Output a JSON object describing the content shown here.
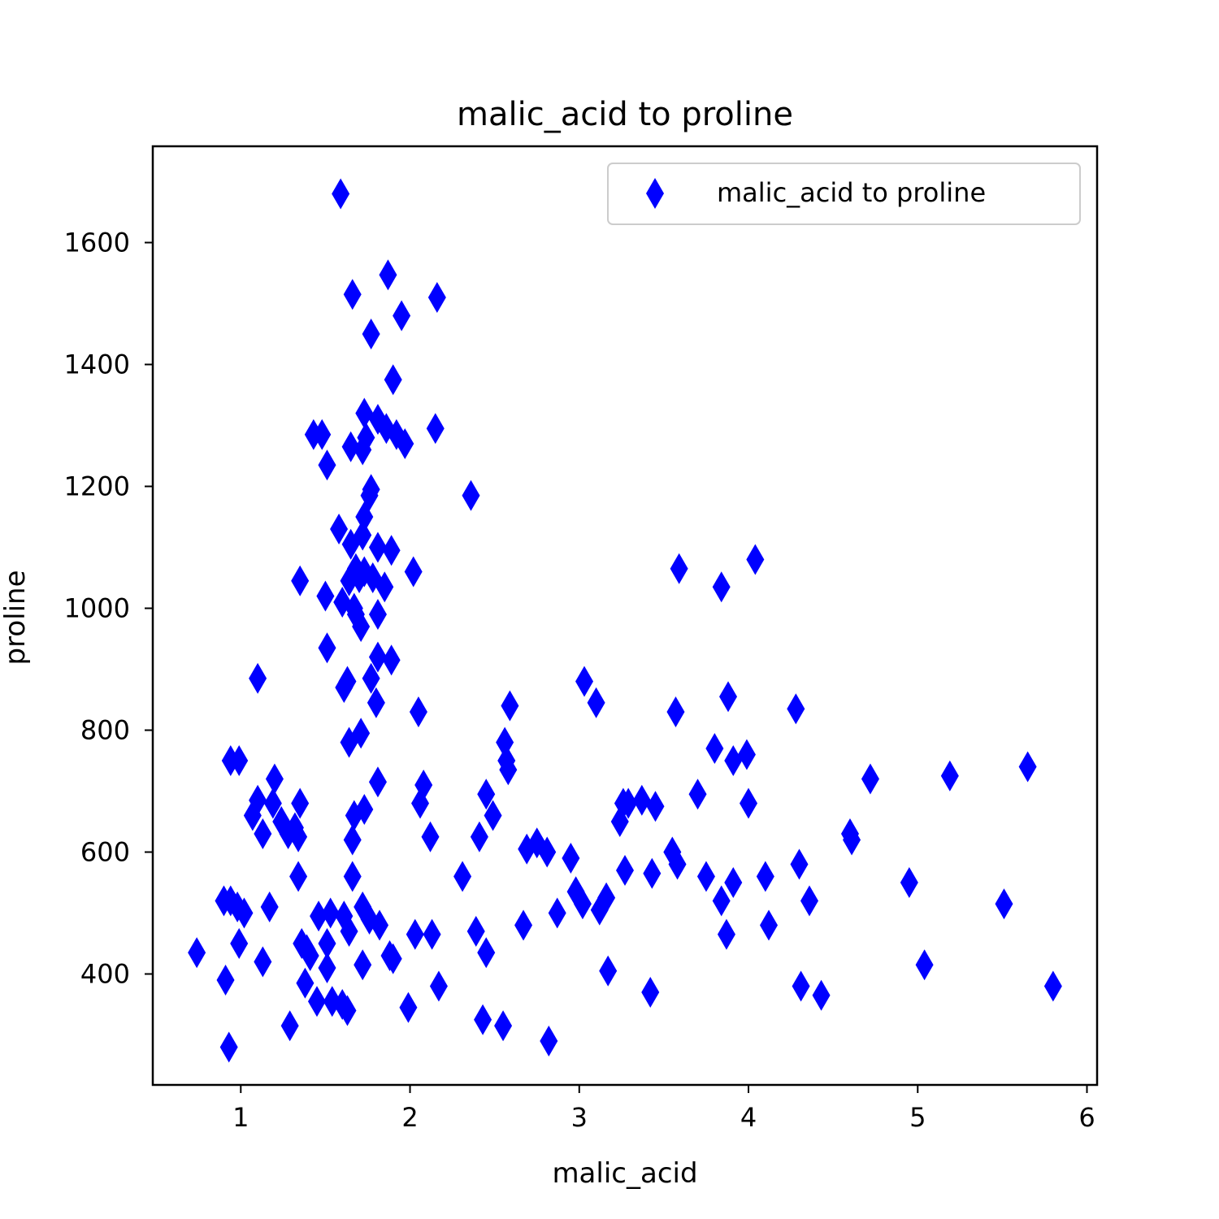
{
  "chart_data": {
    "type": "scatter",
    "title": "malic_acid to proline",
    "xlabel": "malic_acid",
    "ylabel": "proline",
    "xlim": [
      0.48,
      6.06
    ],
    "ylim": [
      218,
      1758
    ],
    "xticks": [
      1,
      2,
      3,
      4,
      5,
      6
    ],
    "yticks": [
      400,
      600,
      800,
      1000,
      1200,
      1400,
      1600
    ],
    "xtick_labels": [
      "1",
      "2",
      "3",
      "4",
      "5",
      "6"
    ],
    "ytick_labels": [
      "400",
      "600",
      "800",
      "1000",
      "1200",
      "1400",
      "1600"
    ],
    "grid": false,
    "legend": {
      "position": "top-right"
    },
    "marker": "thin_diamond",
    "color": "#0000ff",
    "series": [
      {
        "name": "malic_acid to proline",
        "points": [
          [
            1.59,
            1680
          ],
          [
            1.87,
            1547
          ],
          [
            1.66,
            1515
          ],
          [
            2.16,
            1510
          ],
          [
            1.95,
            1480
          ],
          [
            1.77,
            1450
          ],
          [
            1.9,
            1375
          ],
          [
            1.73,
            1320
          ],
          [
            1.81,
            1310
          ],
          [
            1.86,
            1295
          ],
          [
            1.92,
            1285
          ],
          [
            1.97,
            1270
          ],
          [
            2.15,
            1295
          ],
          [
            1.43,
            1285
          ],
          [
            1.48,
            1285
          ],
          [
            1.65,
            1265
          ],
          [
            1.72,
            1260
          ],
          [
            1.74,
            1280
          ],
          [
            1.51,
            1235
          ],
          [
            2.36,
            1185
          ],
          [
            1.77,
            1195
          ],
          [
            1.76,
            1185
          ],
          [
            1.73,
            1150
          ],
          [
            1.58,
            1130
          ],
          [
            1.72,
            1120
          ],
          [
            1.65,
            1105
          ],
          [
            1.81,
            1100
          ],
          [
            1.89,
            1095
          ],
          [
            1.68,
            1065
          ],
          [
            1.73,
            1060
          ],
          [
            1.7,
            1050
          ],
          [
            1.64,
            1045
          ],
          [
            1.78,
            1050
          ],
          [
            1.85,
            1035
          ],
          [
            2.02,
            1060
          ],
          [
            1.35,
            1045
          ],
          [
            1.5,
            1020
          ],
          [
            1.6,
            1010
          ],
          [
            1.67,
            1000
          ],
          [
            1.68,
            990
          ],
          [
            1.71,
            970
          ],
          [
            1.81,
            990
          ],
          [
            1.51,
            935
          ],
          [
            1.81,
            920
          ],
          [
            1.89,
            915
          ],
          [
            1.77,
            885
          ],
          [
            1.63,
            880
          ],
          [
            1.61,
            870
          ],
          [
            1.1,
            885
          ],
          [
            1.8,
            845
          ],
          [
            2.05,
            830
          ],
          [
            1.64,
            780
          ],
          [
            1.71,
            795
          ],
          [
            1.81,
            715
          ],
          [
            0.94,
            750
          ],
          [
            0.99,
            750
          ],
          [
            1.2,
            720
          ],
          [
            1.1,
            685
          ],
          [
            1.07,
            660
          ],
          [
            1.13,
            630
          ],
          [
            1.19,
            680
          ],
          [
            1.24,
            650
          ],
          [
            1.28,
            630
          ],
          [
            1.32,
            640
          ],
          [
            1.34,
            625
          ],
          [
            1.35,
            680
          ],
          [
            1.67,
            660
          ],
          [
            1.73,
            670
          ],
          [
            1.66,
            620
          ],
          [
            2.08,
            710
          ],
          [
            2.06,
            680
          ],
          [
            2.12,
            625
          ],
          [
            1.34,
            560
          ],
          [
            1.66,
            560
          ],
          [
            0.9,
            520
          ],
          [
            0.94,
            520
          ],
          [
            0.98,
            510
          ],
          [
            1.02,
            500
          ],
          [
            1.17,
            510
          ],
          [
            1.46,
            495
          ],
          [
            1.53,
            500
          ],
          [
            1.61,
            495
          ],
          [
            1.64,
            470
          ],
          [
            1.72,
            510
          ],
          [
            1.76,
            490
          ],
          [
            1.82,
            480
          ],
          [
            0.74,
            435
          ],
          [
            0.99,
            450
          ],
          [
            1.13,
            420
          ],
          [
            0.91,
            390
          ],
          [
            0.93,
            280
          ],
          [
            1.36,
            450
          ],
          [
            1.39,
            440
          ],
          [
            1.41,
            430
          ],
          [
            1.38,
            385
          ],
          [
            1.45,
            355
          ],
          [
            1.51,
            450
          ],
          [
            1.51,
            410
          ],
          [
            1.54,
            355
          ],
          [
            1.6,
            350
          ],
          [
            1.63,
            340
          ],
          [
            1.29,
            315
          ],
          [
            1.72,
            415
          ],
          [
            1.88,
            430
          ],
          [
            1.9,
            425
          ],
          [
            2.03,
            465
          ],
          [
            2.13,
            465
          ],
          [
            1.99,
            345
          ],
          [
            2.17,
            380
          ],
          [
            2.56,
            780
          ],
          [
            2.57,
            750
          ],
          [
            2.58,
            735
          ],
          [
            2.59,
            840
          ],
          [
            2.45,
            695
          ],
          [
            2.49,
            660
          ],
          [
            2.41,
            625
          ],
          [
            2.31,
            560
          ],
          [
            2.39,
            470
          ],
          [
            2.45,
            435
          ],
          [
            2.43,
            325
          ],
          [
            2.55,
            315
          ],
          [
            2.69,
            605
          ],
          [
            2.75,
            615
          ],
          [
            2.81,
            600
          ],
          [
            2.67,
            480
          ],
          [
            2.87,
            500
          ],
          [
            2.82,
            290
          ],
          [
            2.95,
            590
          ],
          [
            2.98,
            535
          ],
          [
            3.02,
            515
          ],
          [
            3.12,
            505
          ],
          [
            3.16,
            525
          ],
          [
            3.17,
            405
          ],
          [
            3.03,
            880
          ],
          [
            3.1,
            845
          ],
          [
            3.24,
            650
          ],
          [
            3.26,
            680
          ],
          [
            3.29,
            680
          ],
          [
            3.37,
            685
          ],
          [
            3.45,
            675
          ],
          [
            3.27,
            570
          ],
          [
            3.43,
            565
          ],
          [
            3.42,
            370
          ],
          [
            3.55,
            600
          ],
          [
            3.58,
            580
          ],
          [
            3.57,
            830
          ],
          [
            3.59,
            1065
          ],
          [
            3.7,
            695
          ],
          [
            3.75,
            560
          ],
          [
            3.8,
            770
          ],
          [
            3.84,
            1035
          ],
          [
            3.84,
            520
          ],
          [
            3.87,
            465
          ],
          [
            3.88,
            855
          ],
          [
            3.91,
            750
          ],
          [
            3.91,
            550
          ],
          [
            3.99,
            760
          ],
          [
            4.0,
            680
          ],
          [
            4.04,
            1080
          ],
          [
            4.1,
            560
          ],
          [
            4.12,
            480
          ],
          [
            4.28,
            835
          ],
          [
            4.3,
            580
          ],
          [
            4.31,
            380
          ],
          [
            4.36,
            520
          ],
          [
            4.43,
            365
          ],
          [
            4.6,
            630
          ],
          [
            4.61,
            620
          ],
          [
            4.72,
            720
          ],
          [
            4.95,
            550
          ],
          [
            5.04,
            415
          ],
          [
            5.19,
            725
          ],
          [
            5.51,
            515
          ],
          [
            5.65,
            740
          ],
          [
            5.8,
            380
          ]
        ]
      }
    ]
  }
}
